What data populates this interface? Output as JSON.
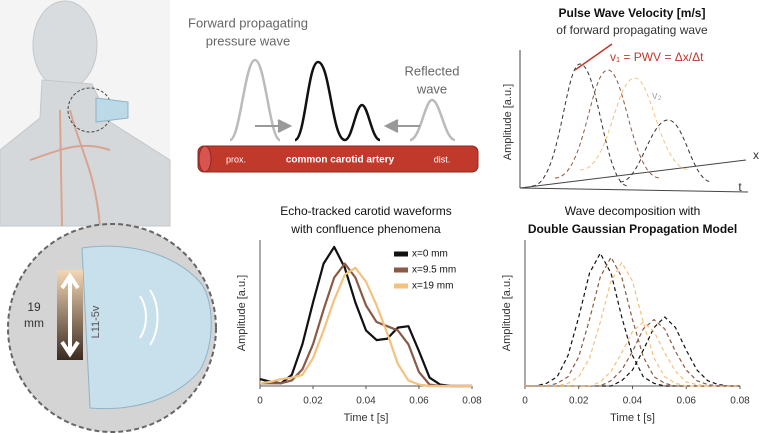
{
  "diagram": {
    "forward_wave": [
      "Forward propagating",
      "pressure wave"
    ],
    "reflected_wave": [
      "Reflected",
      "wave"
    ],
    "artery": {
      "prox": "prox.",
      "name": "common carotid artery",
      "dist": "dist."
    },
    "pwv": {
      "title": "Pulse Wave Velocity [m/s]",
      "subtitle": "of forward propagating wave",
      "formula": "v₁ = PWV = Δx/Δt",
      "v2": "v₂",
      "y_label": "Amplitude [a.u.]",
      "x_axis": "x",
      "t_axis": "t"
    },
    "probe": {
      "depth": "19",
      "unit": "mm",
      "model": "L11-5v"
    }
  },
  "chart_data": [
    {
      "type": "line",
      "title": [
        "Echo-tracked carotid waveforms",
        "with confluence phenomena"
      ],
      "x_label": "Time t [s]",
      "y_label": "Amplitude [a.u.]",
      "xlim": [
        0,
        0.08
      ],
      "xticks": [
        0,
        0.02,
        0.04,
        0.06,
        0.08
      ],
      "ylim": [
        0,
        1.05
      ],
      "x": [
        0,
        0.004,
        0.008,
        0.012,
        0.016,
        0.02,
        0.024,
        0.028,
        0.032,
        0.036,
        0.04,
        0.044,
        0.048,
        0.052,
        0.056,
        0.06,
        0.064,
        0.068,
        0.072,
        0.076,
        0.08
      ],
      "dash": false,
      "legend": "top-right",
      "series": [
        {
          "name": "x=0 mm",
          "color": "#111111",
          "values": [
            0.05,
            0.03,
            0.02,
            0.08,
            0.3,
            0.6,
            0.88,
            1.0,
            0.85,
            0.6,
            0.4,
            0.33,
            0.34,
            0.42,
            0.43,
            0.25,
            0.06,
            0.01,
            0,
            0,
            0
          ]
        },
        {
          "name": "x=9.5 mm",
          "color": "#8a5a44",
          "values": [
            0.02,
            0.02,
            0.02,
            0.04,
            0.12,
            0.3,
            0.55,
            0.78,
            0.88,
            0.78,
            0.58,
            0.46,
            0.43,
            0.4,
            0.3,
            0.1,
            0.01,
            0,
            0,
            0,
            0
          ]
        },
        {
          "name": "x=19 mm",
          "color": "#f2c27e",
          "values": [
            0.02,
            0.03,
            0.05,
            0.06,
            0.08,
            0.2,
            0.4,
            0.62,
            0.8,
            0.85,
            0.75,
            0.58,
            0.38,
            0.16,
            0.04,
            0.01,
            0,
            0,
            0,
            0,
            0
          ]
        }
      ]
    },
    {
      "type": "line",
      "title": [
        "Wave decomposition with",
        "Double Gaussian Propagation Model"
      ],
      "x_label": "Time t [s]",
      "y_label": "Amplitude [a.u.]",
      "xlim": [
        0,
        0.08
      ],
      "xticks": [
        0,
        0.02,
        0.04,
        0.06,
        0.08
      ],
      "ylim": [
        0,
        1.1
      ],
      "x": [
        0,
        0.004,
        0.008,
        0.012,
        0.016,
        0.02,
        0.024,
        0.028,
        0.032,
        0.036,
        0.04,
        0.044,
        0.048,
        0.052,
        0.056,
        0.06,
        0.064,
        0.068,
        0.072,
        0.076,
        0.08
      ],
      "dash": true,
      "series": [
        {
          "color": "#111111",
          "values": [
            0,
            0,
            0.02,
            0.07,
            0.23,
            0.52,
            0.85,
            1,
            0.85,
            0.52,
            0.23,
            0.07,
            0.02,
            0,
            0,
            0,
            0,
            0,
            0,
            0,
            0
          ]
        },
        {
          "color": "#8a5a44",
          "values": [
            0,
            0,
            0,
            0.02,
            0.07,
            0.22,
            0.5,
            0.82,
            0.97,
            0.82,
            0.5,
            0.22,
            0.07,
            0.02,
            0,
            0,
            0,
            0,
            0,
            0,
            0
          ]
        },
        {
          "color": "#f2c27e",
          "values": [
            0,
            0,
            0,
            0,
            0.02,
            0.07,
            0.21,
            0.48,
            0.79,
            0.93,
            0.79,
            0.48,
            0.21,
            0.07,
            0.02,
            0,
            0,
            0,
            0,
            0,
            0
          ]
        },
        {
          "color": "#111111",
          "values": [
            0,
            0,
            0,
            0,
            0,
            0,
            0,
            0,
            0,
            0.04,
            0.12,
            0.27,
            0.44,
            0.52,
            0.44,
            0.27,
            0.12,
            0.04,
            0.01,
            0,
            0
          ]
        },
        {
          "color": "#8a5a44",
          "values": [
            0,
            0,
            0,
            0,
            0,
            0,
            0,
            0,
            0.04,
            0.12,
            0.26,
            0.43,
            0.5,
            0.43,
            0.26,
            0.12,
            0.04,
            0.01,
            0,
            0,
            0
          ]
        },
        {
          "color": "#f2c27e",
          "values": [
            0,
            0,
            0,
            0,
            0,
            0,
            0,
            0.03,
            0.11,
            0.25,
            0.41,
            0.48,
            0.41,
            0.25,
            0.11,
            0.03,
            0.01,
            0,
            0,
            0,
            0
          ]
        }
      ]
    }
  ]
}
